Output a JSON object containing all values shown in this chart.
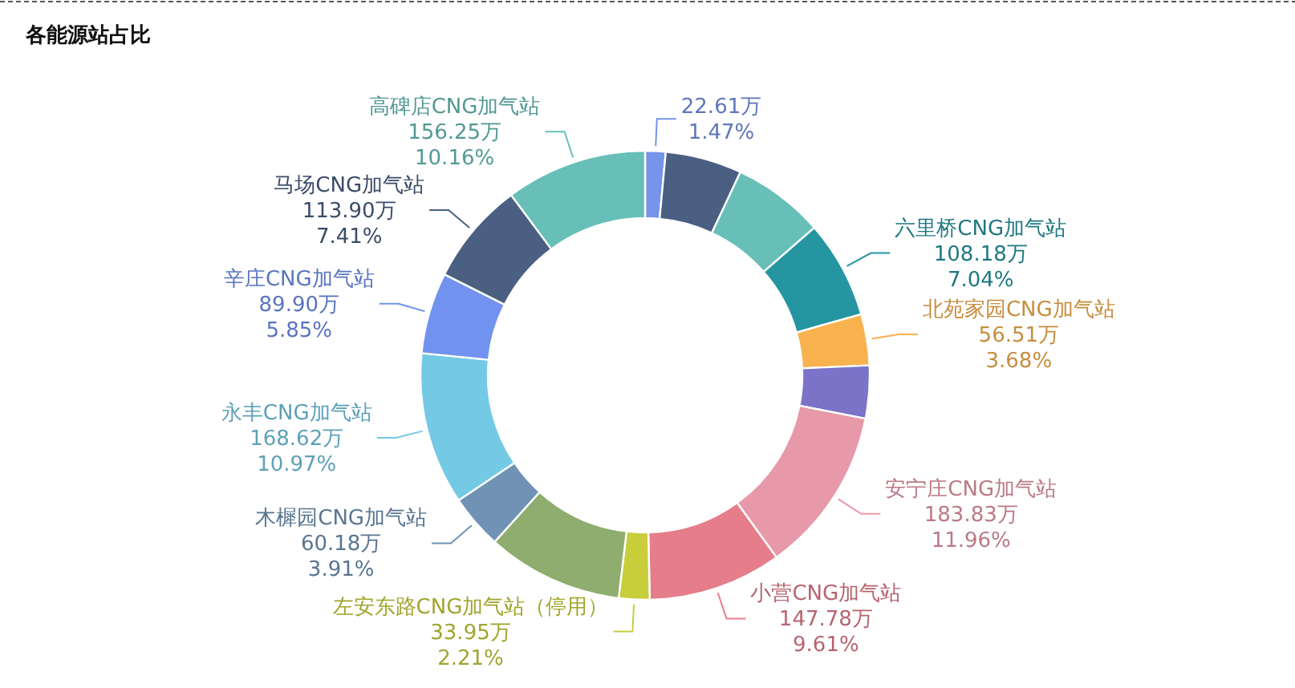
{
  "chart_data": {
    "type": "donut",
    "title": "各能源站占比",
    "categories": [
      null,
      null,
      null,
      "六里桥CNG加气站",
      "北苑家园CNG加气站",
      null,
      "安宁庄CNG加气站",
      "小营CNG加气站",
      "左安东路CNG加气站（停用）",
      null,
      "木樨园CNG加气站",
      "永丰CNG加气站",
      "辛庄CNG加气站",
      "马场CNG加气站",
      "高碑店CNG加气站"
    ],
    "values": [
      22.61,
      84.6,
      101.5,
      108.18,
      56.51,
      58.4,
      183.83,
      147.78,
      33.95,
      150.7,
      60.18,
      168.62,
      89.9,
      113.9,
      156.25
    ],
    "value_labels": [
      "22.61万\n1.47%",
      null,
      null,
      "108.18万\n7.04%",
      "56.51万\n3.68%",
      null,
      "183.83万\n11.96%",
      "147.78万\n9.61%",
      "33.95万\n2.21%",
      null,
      "60.18万\n3.91%",
      "168.62万\n10.97%",
      "89.90万\n5.85%",
      "113.90万\n7.41%",
      "156.25万\n10.16%"
    ],
    "colors": [
      "#7594ea",
      "#4a5f82",
      "#67bfb8",
      "#2596a1",
      "#f8b24e",
      "#7b73c8",
      "#e899a9",
      "#e57d8b",
      "#c8ce3a",
      "#8fad6e",
      "#6f92b5",
      "#74c9e5",
      "#7192ee",
      "#4a5f82",
      "#67bfb8"
    ]
  }
}
